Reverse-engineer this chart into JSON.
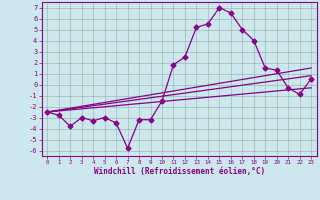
{
  "xlabel": "Windchill (Refroidissement éolien,°C)",
  "background_color": "#cce8ec",
  "line_color": "#880088",
  "grid_color": "#99bbbb",
  "spine_color": "#880088",
  "xlim": [
    -0.5,
    23.5
  ],
  "ylim": [
    -6.5,
    7.5
  ],
  "xticks": [
    0,
    1,
    2,
    3,
    4,
    5,
    6,
    7,
    8,
    9,
    10,
    11,
    12,
    13,
    14,
    15,
    16,
    17,
    18,
    19,
    20,
    21,
    22,
    23
  ],
  "yticks": [
    -6,
    -5,
    -4,
    -3,
    -2,
    -1,
    0,
    1,
    2,
    3,
    4,
    5,
    6,
    7
  ],
  "main_series_x": [
    0,
    1,
    2,
    3,
    4,
    5,
    6,
    7,
    8,
    9,
    10,
    11,
    12,
    13,
    14,
    15,
    16,
    17,
    18,
    19,
    20,
    21,
    22,
    23
  ],
  "main_series_y": [
    -2.5,
    -2.8,
    -3.8,
    -3.0,
    -3.3,
    -3.0,
    -3.5,
    -5.8,
    -3.2,
    -3.2,
    -1.5,
    1.8,
    2.5,
    5.2,
    5.5,
    7.0,
    6.5,
    5.0,
    4.0,
    1.5,
    1.3,
    -0.3,
    -0.9,
    0.5
  ],
  "trend_lines": [
    {
      "x": [
        0,
        23
      ],
      "y": [
        -2.5,
        1.5
      ]
    },
    {
      "x": [
        0,
        23
      ],
      "y": [
        -2.5,
        0.8
      ]
    },
    {
      "x": [
        0,
        23
      ],
      "y": [
        -2.5,
        -0.3
      ]
    }
  ],
  "marker": "D",
  "markersize": 2.5,
  "linewidth": 0.9,
  "tick_labelsize": 5,
  "xlabel_fontsize": 5.5
}
